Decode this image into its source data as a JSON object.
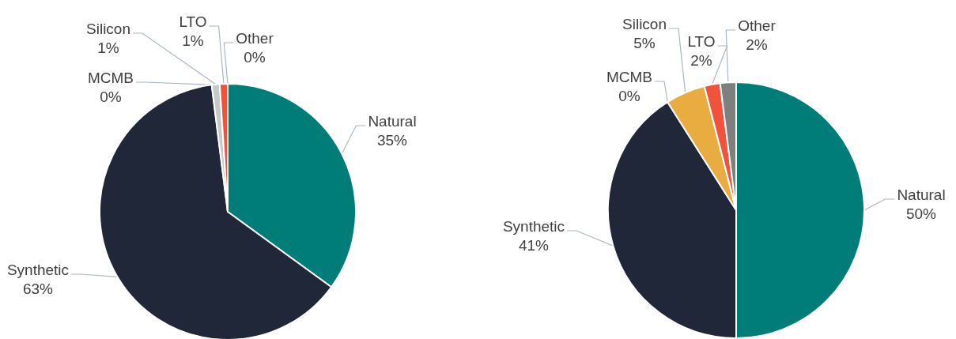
{
  "chart_data": [
    {
      "type": "pie",
      "categories": [
        "Natural",
        "Synthetic",
        "MCMB",
        "Silicon",
        "LTO",
        "Other"
      ],
      "values": [
        35,
        63,
        0,
        1,
        1,
        0
      ],
      "value_labels": [
        "35%",
        "63%",
        "0%",
        "1%",
        "1%",
        "0%"
      ],
      "colors": [
        "#007d78",
        "#1f2738",
        "#d9d9d9",
        "#c8c8c8",
        "#f0523c",
        "#7f7f7f"
      ]
    },
    {
      "type": "pie",
      "categories": [
        "Natural",
        "Synthetic",
        "MCMB",
        "Silicon",
        "LTO",
        "Other"
      ],
      "values": [
        50,
        41,
        0,
        5,
        2,
        2
      ],
      "value_labels": [
        "50%",
        "41%",
        "0%",
        "5%",
        "2%",
        "2%"
      ],
      "colors": [
        "#007d78",
        "#1f2738",
        "#d9d9d9",
        "#e9ac40",
        "#f0523c",
        "#7f7f7f"
      ]
    }
  ]
}
